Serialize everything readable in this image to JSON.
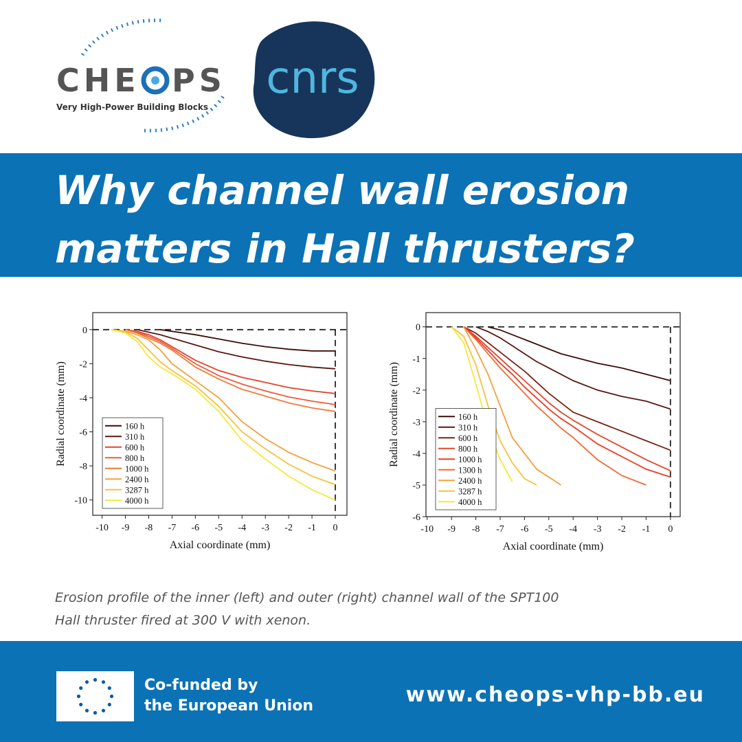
{
  "header": {
    "logo_left": {
      "word_start": "CHE",
      "word_end": "PS",
      "tagline": "Very High-Power Building Blocks"
    },
    "logo_right": "cnrs",
    "title_lines": [
      "Why channel wall erosion",
      "matters in Hall thrusters?"
    ]
  },
  "caption_lines": [
    "Erosion profile of the inner (left) and outer (right) channel wall of the SPT100",
    "Hall thruster fired at 300 V with xenon."
  ],
  "footer": {
    "funding_lines": [
      "Co-funded by",
      "the European Union"
    ],
    "url": "www.cheops-vhp-bb.eu"
  },
  "chart_data": [
    {
      "type": "line",
      "x_label": "Axial coordinate (mm)",
      "y_label": "Radial coordinate (mm)",
      "xlim": [
        -10.4,
        0.5
      ],
      "ylim": [
        -10.9,
        1
      ],
      "xticks": [
        -10,
        -9,
        -8,
        -7,
        -6,
        -5,
        -4,
        -3,
        -2,
        -1,
        0
      ],
      "yticks": [
        0,
        -2,
        -4,
        -6,
        -8,
        -10
      ],
      "hlines": [
        0
      ],
      "vlines": [
        0
      ],
      "legend": "lower left",
      "x": [
        -9.6,
        -9,
        -8.5,
        -8,
        -7.5,
        -7,
        -6,
        -5,
        -4,
        -3,
        -2,
        -1,
        0
      ],
      "series": [
        {
          "name": "160 h",
          "color": "#3a0d08",
          "values": [
            null,
            null,
            null,
            null,
            0,
            -0.1,
            -0.3,
            -0.55,
            -0.8,
            -1.0,
            -1.15,
            -1.25,
            -1.25
          ]
        },
        {
          "name": "310 h",
          "color": "#5a1710",
          "values": [
            null,
            null,
            0,
            -0.15,
            -0.3,
            -0.5,
            -0.9,
            -1.3,
            -1.6,
            -1.85,
            -2.05,
            -2.2,
            -2.3
          ]
        },
        {
          "name": "600 h",
          "color": "#e2442c",
          "values": [
            null,
            0,
            -0.1,
            -0.3,
            -0.6,
            -1.0,
            -1.8,
            -2.4,
            -2.8,
            -3.1,
            -3.4,
            -3.6,
            -3.75
          ]
        },
        {
          "name": "800 h",
          "color": "#ee5a3a",
          "values": [
            null,
            0,
            -0.15,
            -0.4,
            -0.7,
            -1.1,
            -2.0,
            -2.7,
            -3.2,
            -3.6,
            -3.95,
            -4.2,
            -4.4
          ]
        },
        {
          "name": "1000 h",
          "color": "#f07a3a",
          "values": [
            null,
            0,
            -0.2,
            -0.5,
            -0.8,
            -1.2,
            -2.2,
            -2.9,
            -3.5,
            -3.9,
            -4.3,
            -4.6,
            -4.8
          ]
        },
        {
          "name": "2400 h",
          "color": "#f2a03c",
          "values": [
            0,
            -0.1,
            -0.3,
            -0.6,
            -1.2,
            -2.0,
            -3.0,
            -4.0,
            -5.4,
            -6.4,
            -7.2,
            -7.8,
            -8.3
          ]
        },
        {
          "name": "3287 h",
          "color": "#f6c23a",
          "values": [
            0,
            -0.15,
            -0.5,
            -1.2,
            -1.9,
            -2.4,
            -3.3,
            -4.5,
            -6.0,
            -7.0,
            -7.9,
            -8.6,
            -9.1
          ]
        },
        {
          "name": "4000 h",
          "color": "#f6e83a",
          "values": [
            0,
            -0.2,
            -0.7,
            -1.6,
            -2.2,
            -2.6,
            -3.5,
            -4.8,
            -6.5,
            -7.6,
            -8.6,
            -9.4,
            -10.0
          ]
        }
      ]
    },
    {
      "type": "line",
      "x_label": "Axial coordinate (mm)",
      "y_label": "Radial coordinate (mm)",
      "xlim": [
        -10.05,
        0.4
      ],
      "ylim": [
        -6,
        0.45
      ],
      "xticks": [
        -10,
        -9,
        -8,
        -7,
        -6,
        -5,
        -4,
        -3,
        -2,
        -1,
        0
      ],
      "yticks": [
        0,
        -1,
        -2,
        -3,
        -4,
        -5,
        -6
      ],
      "hlines": [
        0
      ],
      "vlines": [
        0
      ],
      "legend": "lower left",
      "x": [
        -9,
        -8.5,
        -8,
        -7.5,
        -7,
        -6.5,
        -6,
        -5.5,
        -5,
        -4.5,
        -4,
        -3,
        -2,
        -1,
        0
      ],
      "series": [
        {
          "name": "160 h",
          "color": "#3a0d08",
          "values": [
            null,
            null,
            null,
            0,
            -0.1,
            -0.25,
            -0.4,
            -0.55,
            -0.7,
            -0.85,
            -0.95,
            -1.15,
            -1.3,
            -1.5,
            -1.7
          ]
        },
        {
          "name": "310 h",
          "color": "#5a1710",
          "values": [
            null,
            null,
            0,
            -0.15,
            -0.35,
            -0.6,
            -0.85,
            -1.1,
            -1.3,
            -1.5,
            -1.7,
            -2.0,
            -2.2,
            -2.35,
            -2.6
          ]
        },
        {
          "name": "600 h",
          "color": "#7a2214",
          "values": [
            null,
            0,
            -0.2,
            -0.5,
            -0.8,
            -1.1,
            -1.4,
            -1.75,
            -2.1,
            -2.4,
            -2.7,
            -3.0,
            -3.3,
            -3.6,
            -3.9
          ]
        },
        {
          "name": "800 h",
          "color": "#e2442c",
          "values": [
            null,
            0,
            -0.3,
            -0.65,
            -1.0,
            -1.35,
            -1.7,
            -2.05,
            -2.4,
            -2.7,
            -2.95,
            -3.4,
            -3.8,
            -4.2,
            -4.55
          ]
        },
        {
          "name": "1000 h",
          "color": "#ee3a24",
          "values": [
            null,
            0,
            -0.35,
            -0.75,
            -1.15,
            -1.5,
            -1.9,
            -2.25,
            -2.6,
            -2.9,
            -3.15,
            -3.7,
            -4.1,
            -4.5,
            -4.75
          ]
        },
        {
          "name": "1300 h",
          "color": "#f06a32",
          "values": [
            null,
            0,
            -0.4,
            -0.85,
            -1.3,
            -1.7,
            -2.1,
            -2.5,
            -2.85,
            -3.2,
            -3.5,
            -4.2,
            -4.7,
            -5.0,
            null
          ]
        },
        {
          "name": "2400 h",
          "color": "#f2a03c",
          "values": [
            null,
            0,
            -0.7,
            -1.5,
            -2.5,
            -3.5,
            -4.0,
            -4.5,
            -4.75,
            -5.0,
            null,
            null,
            null,
            null,
            null
          ]
        },
        {
          "name": "3287 h",
          "color": "#f6c23a",
          "values": [
            0,
            -0.3,
            -1.2,
            -2.5,
            -3.6,
            -4.3,
            -4.8,
            -5.0,
            null,
            null,
            null,
            null,
            null,
            null,
            null
          ]
        },
        {
          "name": "4000 h",
          "color": "#f6e83a",
          "values": [
            0,
            -0.5,
            -1.8,
            -3.2,
            -4.2,
            -4.9,
            null,
            null,
            null,
            null,
            null,
            null,
            null,
            null,
            null
          ]
        }
      ]
    }
  ]
}
